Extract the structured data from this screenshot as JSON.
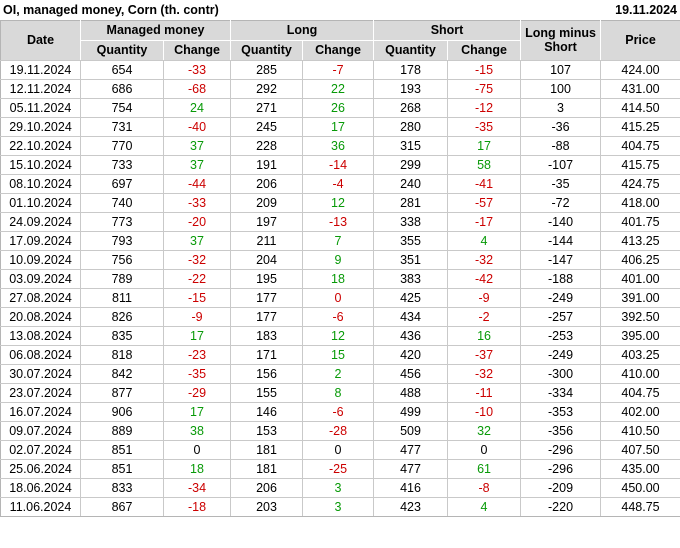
{
  "header": {
    "title": "OI, managed money, Corn (th. contr)",
    "report_date": "19.11.2024"
  },
  "colors": {
    "negative": "#cc0000",
    "positive": "#089a08",
    "neutral": "#000000",
    "header_bg": "#d9d9d9",
    "grid": "#c9c9c9",
    "header_grid": "#ffffff",
    "outer_border": "#b5b5b5"
  },
  "table_head": {
    "date": "Date",
    "managed_money": "Managed money",
    "long": "Long",
    "short": "Short",
    "long_minus_short": "Long minus Short",
    "price": "Price",
    "quantity": "Quantity",
    "change": "Change"
  },
  "chart_data": {
    "type": "table",
    "title": "OI, managed money, Corn (th. contr)",
    "report_date": "19.11.2024",
    "column_groups": [
      "Date",
      "Managed money",
      "Long",
      "Short",
      "Long minus Short",
      "Price"
    ],
    "sub_columns_under_groups": [
      "Quantity",
      "Change"
    ],
    "columns": [
      "Date",
      "Managed money Quantity",
      "Managed money Change",
      "Long Quantity",
      "Long Change",
      "Short Quantity",
      "Short Change",
      "Long minus Short",
      "Price"
    ],
    "change_color_codes": {
      "neg": "red",
      "pos": "green",
      "zero": "black"
    },
    "rows": [
      [
        "19.11.2024",
        "654",
        [
          "-33",
          "neg"
        ],
        "285",
        [
          "-7",
          "neg"
        ],
        "178",
        [
          "-15",
          "neg"
        ],
        "107",
        "424.00"
      ],
      [
        "12.11.2024",
        "686",
        [
          "-68",
          "neg"
        ],
        "292",
        [
          "22",
          "pos"
        ],
        "193",
        [
          "-75",
          "neg"
        ],
        "100",
        "431.00"
      ],
      [
        "05.11.2024",
        "754",
        [
          "24",
          "pos"
        ],
        "271",
        [
          "26",
          "pos"
        ],
        "268",
        [
          "-12",
          "neg"
        ],
        "3",
        "414.50"
      ],
      [
        "29.10.2024",
        "731",
        [
          "-40",
          "neg"
        ],
        "245",
        [
          "17",
          "pos"
        ],
        "280",
        [
          "-35",
          "neg"
        ],
        "-36",
        "415.25"
      ],
      [
        "22.10.2024",
        "770",
        [
          "37",
          "pos"
        ],
        "228",
        [
          "36",
          "pos"
        ],
        "315",
        [
          "17",
          "pos"
        ],
        "-88",
        "404.75"
      ],
      [
        "15.10.2024",
        "733",
        [
          "37",
          "pos"
        ],
        "191",
        [
          "-14",
          "neg"
        ],
        "299",
        [
          "58",
          "pos"
        ],
        "-107",
        "415.75"
      ],
      [
        "08.10.2024",
        "697",
        [
          "-44",
          "neg"
        ],
        "206",
        [
          "-4",
          "neg"
        ],
        "240",
        [
          "-41",
          "neg"
        ],
        "-35",
        "424.75"
      ],
      [
        "01.10.2024",
        "740",
        [
          "-33",
          "neg"
        ],
        "209",
        [
          "12",
          "pos"
        ],
        "281",
        [
          "-57",
          "neg"
        ],
        "-72",
        "418.00"
      ],
      [
        "24.09.2024",
        "773",
        [
          "-20",
          "neg"
        ],
        "197",
        [
          "-13",
          "neg"
        ],
        "338",
        [
          "-17",
          "neg"
        ],
        "-140",
        "401.75"
      ],
      [
        "17.09.2024",
        "793",
        [
          "37",
          "pos"
        ],
        "211",
        [
          "7",
          "pos"
        ],
        "355",
        [
          "4",
          "pos"
        ],
        "-144",
        "413.25"
      ],
      [
        "10.09.2024",
        "756",
        [
          "-32",
          "neg"
        ],
        "204",
        [
          "9",
          "pos"
        ],
        "351",
        [
          "-32",
          "neg"
        ],
        "-147",
        "406.25"
      ],
      [
        "03.09.2024",
        "789",
        [
          "-22",
          "neg"
        ],
        "195",
        [
          "18",
          "pos"
        ],
        "383",
        [
          "-42",
          "neg"
        ],
        "-188",
        "401.00"
      ],
      [
        "27.08.2024",
        "811",
        [
          "-15",
          "neg"
        ],
        "177",
        [
          "0",
          "neg"
        ],
        "425",
        [
          "-9",
          "neg"
        ],
        "-249",
        "391.00"
      ],
      [
        "20.08.2024",
        "826",
        [
          "-9",
          "neg"
        ],
        "177",
        [
          "-6",
          "neg"
        ],
        "434",
        [
          "-2",
          "neg"
        ],
        "-257",
        "392.50"
      ],
      [
        "13.08.2024",
        "835",
        [
          "17",
          "pos"
        ],
        "183",
        [
          "12",
          "pos"
        ],
        "436",
        [
          "16",
          "pos"
        ],
        "-253",
        "395.00"
      ],
      [
        "06.08.2024",
        "818",
        [
          "-23",
          "neg"
        ],
        "171",
        [
          "15",
          "pos"
        ],
        "420",
        [
          "-37",
          "neg"
        ],
        "-249",
        "403.25"
      ],
      [
        "30.07.2024",
        "842",
        [
          "-35",
          "neg"
        ],
        "156",
        [
          "2",
          "pos"
        ],
        "456",
        [
          "-32",
          "neg"
        ],
        "-300",
        "410.00"
      ],
      [
        "23.07.2024",
        "877",
        [
          "-29",
          "neg"
        ],
        "155",
        [
          "8",
          "pos"
        ],
        "488",
        [
          "-11",
          "neg"
        ],
        "-334",
        "404.75"
      ],
      [
        "16.07.2024",
        "906",
        [
          "17",
          "pos"
        ],
        "146",
        [
          "-6",
          "neg"
        ],
        "499",
        [
          "-10",
          "neg"
        ],
        "-353",
        "402.00"
      ],
      [
        "09.07.2024",
        "889",
        [
          "38",
          "pos"
        ],
        "153",
        [
          "-28",
          "neg"
        ],
        "509",
        [
          "32",
          "pos"
        ],
        "-356",
        "410.50"
      ],
      [
        "02.07.2024",
        "851",
        [
          "0",
          "zero"
        ],
        "181",
        [
          "0",
          "zero"
        ],
        "477",
        [
          "0",
          "zero"
        ],
        "-296",
        "407.50"
      ],
      [
        "25.06.2024",
        "851",
        [
          "18",
          "pos"
        ],
        "181",
        [
          "-25",
          "neg"
        ],
        "477",
        [
          "61",
          "pos"
        ],
        "-296",
        "435.00"
      ],
      [
        "18.06.2024",
        "833",
        [
          "-34",
          "neg"
        ],
        "206",
        [
          "3",
          "pos"
        ],
        "416",
        [
          "-8",
          "neg"
        ],
        "-209",
        "450.00"
      ],
      [
        "11.06.2024",
        "867",
        [
          "-18",
          "neg"
        ],
        "203",
        [
          "3",
          "pos"
        ],
        "423",
        [
          "4",
          "pos"
        ],
        "-220",
        "448.75"
      ]
    ]
  }
}
